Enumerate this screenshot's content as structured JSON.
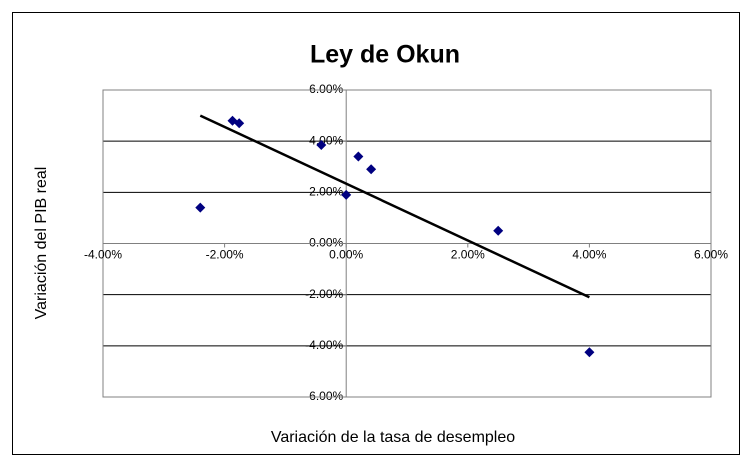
{
  "chart_data": {
    "type": "scatter",
    "title": "Ley de Okun",
    "x_label": "Variación de la tasa de desempleo",
    "y_label": "Variación del PIB real",
    "x": [
      -2.4,
      -1.87,
      -1.76,
      -0.41,
      0.2,
      0.41,
      0.0,
      2.5,
      4.0
    ],
    "values": [
      1.4,
      4.8,
      4.7,
      3.85,
      3.4,
      2.9,
      1.9,
      0.5,
      -4.25
    ],
    "color": "#000080",
    "trendline": {
      "x": [
        -2.4,
        4.0
      ],
      "values": [
        5.0,
        -2.1
      ],
      "color": "#000000"
    },
    "xlim": [
      -4,
      6
    ],
    "ylim": [
      -6,
      6
    ],
    "xticks": [
      {
        "value": -4,
        "label": "-4.00%"
      },
      {
        "value": -2,
        "label": "-2.00%"
      },
      {
        "value": 0,
        "label": "0.00%"
      },
      {
        "value": 2,
        "label": "2.00%"
      },
      {
        "value": 4,
        "label": "4.00%"
      },
      {
        "value": 6,
        "label": "6.00%"
      }
    ],
    "yticks": [
      {
        "value": -6,
        "label": "-6.00%"
      },
      {
        "value": -4,
        "label": "-4.00%"
      },
      {
        "value": -2,
        "label": "-2.00%"
      },
      {
        "value": 0,
        "label": "0.00%"
      },
      {
        "value": 2,
        "label": "2.00%"
      },
      {
        "value": 4,
        "label": "4.00%"
      },
      {
        "value": 6,
        "label": "6.00%"
      }
    ],
    "grid": true
  }
}
